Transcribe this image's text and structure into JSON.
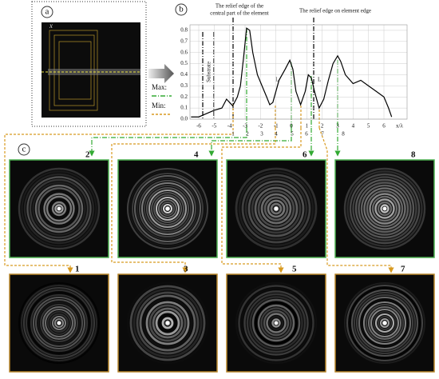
{
  "panels": {
    "a": "a",
    "b": "b",
    "c": "c",
    "a_axis": "x"
  },
  "legend": {
    "max": "Max:",
    "min": "Min:"
  },
  "annotations": {
    "central_edge": [
      "The relief edge of the",
      "central part of the element"
    ],
    "element_edge": "The relief edge on element edge",
    "substrate": "Substrate",
    "period": "L"
  },
  "extrema_labels": [
    "1",
    "2",
    "3",
    "4",
    "5",
    "6",
    "7",
    "8"
  ],
  "chart_data": {
    "type": "line",
    "xlabel": "x/λ",
    "color": "#000000",
    "x": [
      -6.5,
      -6,
      -5.5,
      -5,
      -4.5,
      -4.2,
      -4,
      -3.8,
      -3.5,
      -3.3,
      -3.1,
      -2.9,
      -2.7,
      -2.5,
      -2.2,
      -1.9,
      -1.6,
      -1.4,
      -1.2,
      -0.8,
      -0.4,
      -0.1,
      0.1,
      0.3,
      0.6,
      0.9,
      1.1,
      1.3,
      1.5,
      1.8,
      2.1,
      2.4,
      2.7,
      3.0,
      3.2,
      3.5,
      4,
      4.5,
      5,
      5.5,
      6,
      6.3,
      6.5
    ],
    "values": [
      0.02,
      0.02,
      0.05,
      0.08,
      0.1,
      0.18,
      0.15,
      0.12,
      0.2,
      0.3,
      0.55,
      0.82,
      0.8,
      0.6,
      0.4,
      0.3,
      0.2,
      0.13,
      0.15,
      0.35,
      0.45,
      0.53,
      0.45,
      0.25,
      0.13,
      0.25,
      0.4,
      0.37,
      0.25,
      0.1,
      0.18,
      0.35,
      0.5,
      0.57,
      0.52,
      0.4,
      0.32,
      0.35,
      0.3,
      0.25,
      0.2,
      0.1,
      0.02
    ],
    "xlim": [
      -6.57,
      7.5
    ],
    "ylim": [
      0,
      0.85
    ],
    "xticks": [
      -6,
      -5,
      -4,
      -3,
      -2,
      -1,
      0,
      1,
      2,
      3,
      4,
      5,
      6
    ],
    "yticks": [
      {
        "value": 0,
        "label": "0.0"
      },
      0.1,
      0.2,
      0.3,
      0.4,
      0.5,
      0.6,
      0.7,
      0.8
    ],
    "grid": true
  }
}
